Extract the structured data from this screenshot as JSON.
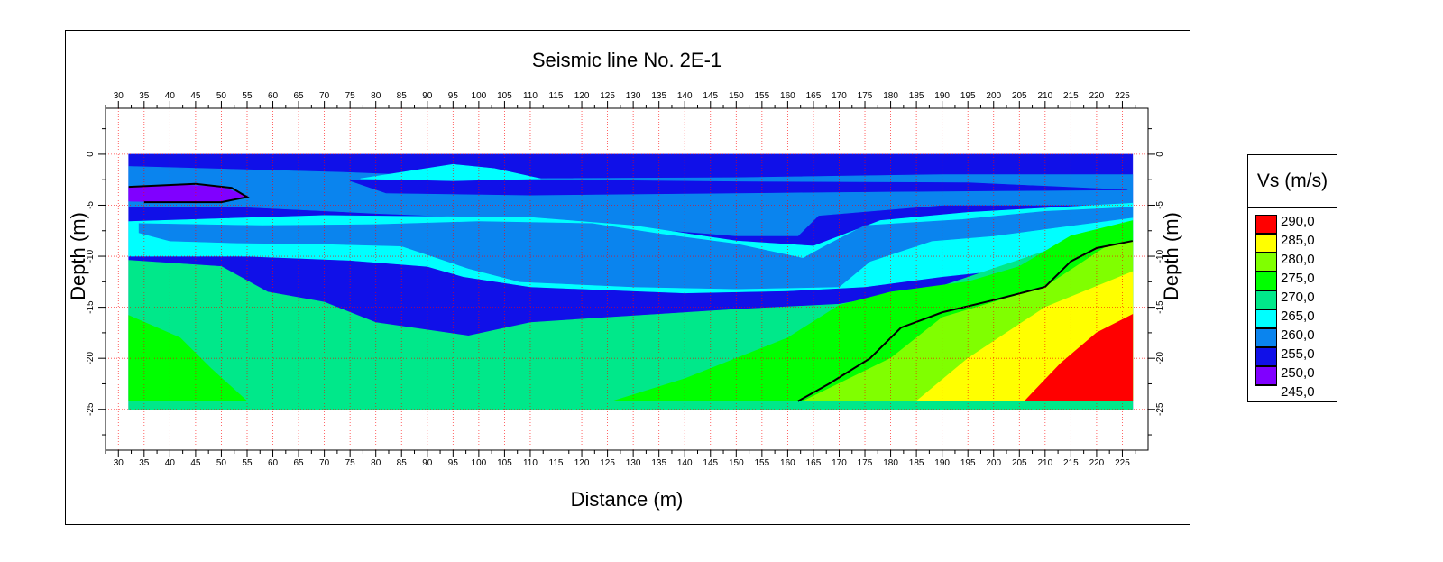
{
  "chart_data": {
    "type": "heatmap",
    "title": "Seismic line No. 2E-1",
    "xlabel": "Distance (m)",
    "ylabel_left": "Depth (m)",
    "ylabel_right": "Depth (m)",
    "xlim": [
      27.5,
      230
    ],
    "ylim": [
      -29,
      4.5
    ],
    "x_ticks": [
      30,
      35,
      40,
      45,
      50,
      55,
      60,
      65,
      70,
      75,
      80,
      85,
      90,
      95,
      100,
      105,
      110,
      115,
      120,
      125,
      130,
      135,
      140,
      145,
      150,
      155,
      160,
      165,
      170,
      175,
      180,
      185,
      190,
      195,
      200,
      205,
      210,
      215,
      220,
      225
    ],
    "y_ticks": [
      0,
      -5,
      -10,
      -15,
      -20,
      -25
    ],
    "grid": true,
    "colorbar": {
      "title": "Vs (m/s)",
      "levels": [
        "290,0",
        "285,0",
        "280,0",
        "275,0",
        "270,0",
        "265,0",
        "260,0",
        "255,0",
        "250,0",
        "245,0"
      ],
      "colors": [
        "#ff0000",
        "#ffff00",
        "#80ff00",
        "#00ff00",
        "#00e88a",
        "#00ffff",
        "#0a84ee",
        "#1010e8",
        "#8000ff",
        "#8000ff"
      ]
    },
    "regions": [
      {
        "name": "255,0",
        "color": "#1010e8",
        "points": [
          [
            32,
            0
          ],
          [
            227,
            0
          ],
          [
            227,
            -25
          ],
          [
            32,
            -25
          ]
        ]
      },
      {
        "name": "260,0",
        "color": "#0a84ee",
        "points": [
          [
            32,
            -1.2
          ],
          [
            75,
            -1.8
          ],
          [
            105,
            -2.4
          ],
          [
            150,
            -2.3
          ],
          [
            190,
            -2
          ],
          [
            227,
            -2
          ],
          [
            227,
            -5
          ],
          [
            190,
            -5
          ],
          [
            166,
            -6
          ],
          [
            162,
            -8
          ],
          [
            150,
            -8
          ],
          [
            125,
            -7
          ],
          [
            100,
            -6.2
          ],
          [
            80,
            -5.8
          ],
          [
            55,
            -5.2
          ],
          [
            32,
            -5.2
          ]
        ]
      },
      {
        "name": "255,0",
        "color": "#1010e8",
        "points": [
          [
            75,
            -2.6
          ],
          [
            110,
            -2.5
          ],
          [
            150,
            -2.7
          ],
          [
            195,
            -2.8
          ],
          [
            226,
            -3.5
          ],
          [
            195,
            -3.6
          ],
          [
            150,
            -3.8
          ],
          [
            110,
            -4
          ],
          [
            82,
            -3.8
          ]
        ]
      },
      {
        "name": "265,0",
        "color": "#00ffff",
        "points": [
          [
            77,
            -2.4
          ],
          [
            95,
            -1
          ],
          [
            103,
            -1.4
          ],
          [
            112,
            -2.4
          ],
          [
            95,
            -2.6
          ]
        ]
      },
      {
        "name": "265,0",
        "color": "#00ffff",
        "points": [
          [
            32,
            -6.6
          ],
          [
            70,
            -6
          ],
          [
            110,
            -6.2
          ],
          [
            130,
            -7
          ],
          [
            150,
            -8.5
          ],
          [
            165,
            -9
          ],
          [
            178,
            -6.5
          ],
          [
            195,
            -5.7
          ],
          [
            227,
            -4.8
          ],
          [
            227,
            -10
          ],
          [
            190,
            -12
          ],
          [
            175,
            -13
          ],
          [
            160,
            -13.4
          ],
          [
            140,
            -13.6
          ],
          [
            110,
            -13
          ],
          [
            97,
            -12
          ],
          [
            90,
            -11
          ],
          [
            75,
            -10.4
          ],
          [
            55,
            -10
          ],
          [
            32,
            -10
          ]
        ]
      },
      {
        "name": "260,0",
        "color": "#0a84ee",
        "points": [
          [
            34,
            -6.8
          ],
          [
            58,
            -7
          ],
          [
            80,
            -6.9
          ],
          [
            100,
            -6.6
          ],
          [
            122,
            -6.8
          ],
          [
            135,
            -7.8
          ],
          [
            150,
            -8.8
          ],
          [
            163,
            -10.2
          ],
          [
            168,
            -8.8
          ],
          [
            175,
            -7
          ],
          [
            194,
            -6.4
          ],
          [
            210,
            -5.6
          ],
          [
            227,
            -5.2
          ],
          [
            227,
            -6.2
          ],
          [
            212,
            -7.2
          ],
          [
            200,
            -8
          ],
          [
            188,
            -8.5
          ],
          [
            176,
            -10.5
          ],
          [
            170,
            -13
          ],
          [
            150,
            -13.2
          ],
          [
            130,
            -13
          ],
          [
            108,
            -12.5
          ],
          [
            98,
            -11.2
          ],
          [
            85,
            -9
          ],
          [
            70,
            -8.8
          ],
          [
            53,
            -8.7
          ],
          [
            40,
            -8.5
          ],
          [
            34,
            -7.7
          ]
        ]
      },
      {
        "name": "250,0",
        "color": "#8000ff",
        "points": [
          [
            32,
            -3.2
          ],
          [
            42,
            -3
          ],
          [
            50,
            -3.2
          ],
          [
            55,
            -4.1
          ],
          [
            50,
            -4.6
          ],
          [
            40,
            -4.7
          ],
          [
            32,
            -4.6
          ]
        ]
      },
      {
        "name": "270,0",
        "color": "#00e88a",
        "points": [
          [
            32,
            -10.4
          ],
          [
            50,
            -11
          ],
          [
            59,
            -13.5
          ],
          [
            70,
            -14.5
          ],
          [
            80,
            -16.5
          ],
          [
            98,
            -17.8
          ],
          [
            110,
            -16.5
          ],
          [
            125,
            -16
          ],
          [
            150,
            -15.2
          ],
          [
            170,
            -14.7
          ],
          [
            190,
            -12.9
          ],
          [
            210,
            -9.5
          ],
          [
            227,
            -7.5
          ],
          [
            227,
            -25
          ],
          [
            32,
            -25
          ]
        ]
      },
      {
        "name": "275,0",
        "color": "#00ff00",
        "points": [
          [
            32,
            -15.8
          ],
          [
            42,
            -18
          ],
          [
            48,
            -21
          ],
          [
            55,
            -24.2
          ],
          [
            32,
            -24.2
          ]
        ]
      },
      {
        "name": "275,0",
        "color": "#00ff00",
        "points": [
          [
            126,
            -24.2
          ],
          [
            140,
            -22
          ],
          [
            160,
            -18
          ],
          [
            170,
            -14.8
          ],
          [
            180,
            -13.5
          ],
          [
            195,
            -12.5
          ],
          [
            205,
            -11
          ],
          [
            215,
            -8
          ],
          [
            227,
            -6.5
          ],
          [
            227,
            -24.2
          ]
        ]
      },
      {
        "name": "280,0",
        "color": "#80ff00",
        "points": [
          [
            163,
            -24.2
          ],
          [
            180,
            -20
          ],
          [
            190,
            -16
          ],
          [
            210,
            -13
          ],
          [
            222,
            -9
          ],
          [
            227,
            -8.5
          ],
          [
            227,
            -24.2
          ]
        ]
      },
      {
        "name": "285,0",
        "color": "#ffff00",
        "points": [
          [
            185,
            -24.2
          ],
          [
            195,
            -20
          ],
          [
            210,
            -15
          ],
          [
            227,
            -11.5
          ],
          [
            227,
            -24.2
          ]
        ]
      },
      {
        "name": "290,0",
        "color": "#ff0000",
        "points": [
          [
            206,
            -24.2
          ],
          [
            213,
            -20.5
          ],
          [
            220,
            -17.5
          ],
          [
            227,
            -15.7
          ],
          [
            227,
            -24.2
          ]
        ]
      }
    ],
    "contours": [
      {
        "color": "#000000",
        "points": [
          [
            162,
            -24.2
          ],
          [
            168,
            -22.5
          ],
          [
            176,
            -20
          ],
          [
            182,
            -17
          ],
          [
            190,
            -15.5
          ],
          [
            200,
            -14.3
          ],
          [
            210,
            -13
          ],
          [
            215,
            -10.5
          ],
          [
            220,
            -9.2
          ],
          [
            227,
            -8.5
          ]
        ]
      },
      {
        "color": "#000000",
        "points": [
          [
            32,
            -3.2
          ],
          [
            45,
            -2.9
          ],
          [
            52,
            -3.3
          ],
          [
            55,
            -4.2
          ],
          [
            50,
            -4.7
          ],
          [
            35,
            -4.7
          ]
        ]
      }
    ]
  }
}
